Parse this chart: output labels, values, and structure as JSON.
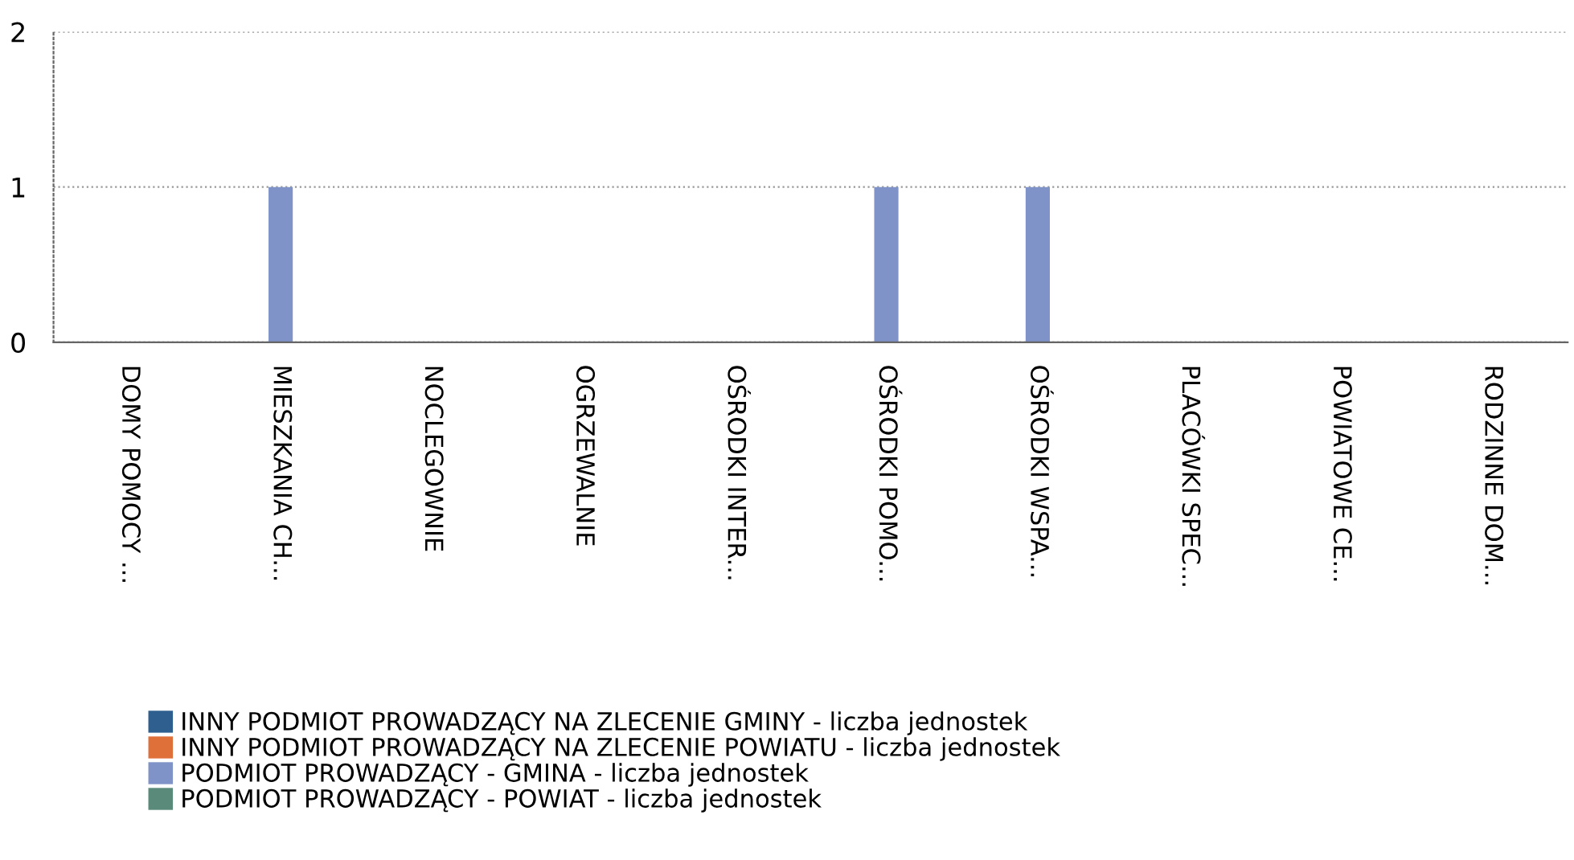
{
  "chart_data": {
    "type": "bar",
    "stacked": true,
    "categories": [
      "DOMY POMOCY ...",
      "MIESZKANIA CH...",
      "NOCLEGOWNIE",
      "OGRZEWALNIE",
      "OŚRODKI INTER...",
      "OŚRODKI POMO...",
      "OŚRODKI WSPA...",
      "PLACÓWKI SPEC...",
      "POWIATOWE CE...",
      "RODZINNE DOM..."
    ],
    "series": [
      {
        "name": "INNY PODMIOT PROWADZĄCY NA ZLECENIE GMINY - liczba jednostek",
        "color": "#2f5f8f",
        "values": [
          0,
          0,
          0,
          0,
          0,
          0,
          0,
          0,
          0,
          0
        ]
      },
      {
        "name": "INNY PODMIOT PROWADZĄCY NA ZLECENIE POWIATU - liczba jednostek",
        "color": "#e0703a",
        "values": [
          0,
          0,
          0,
          0,
          0,
          0,
          0,
          0,
          0,
          0
        ]
      },
      {
        "name": "PODMIOT PROWADZĄCY - GMINA - liczba jednostek",
        "color": "#7f93c8",
        "values": [
          0,
          1,
          0,
          0,
          0,
          1,
          1,
          0,
          0,
          0
        ]
      },
      {
        "name": "PODMIOT PROWADZĄCY - POWIAT - liczba jednostek",
        "color": "#5a8a7a",
        "values": [
          0,
          0,
          0,
          0,
          0,
          0,
          0,
          0,
          0,
          0
        ]
      }
    ],
    "ylim": [
      0,
      2
    ],
    "yticks": [
      0,
      1,
      2
    ],
    "grid": "y",
    "legend": "bottom"
  }
}
